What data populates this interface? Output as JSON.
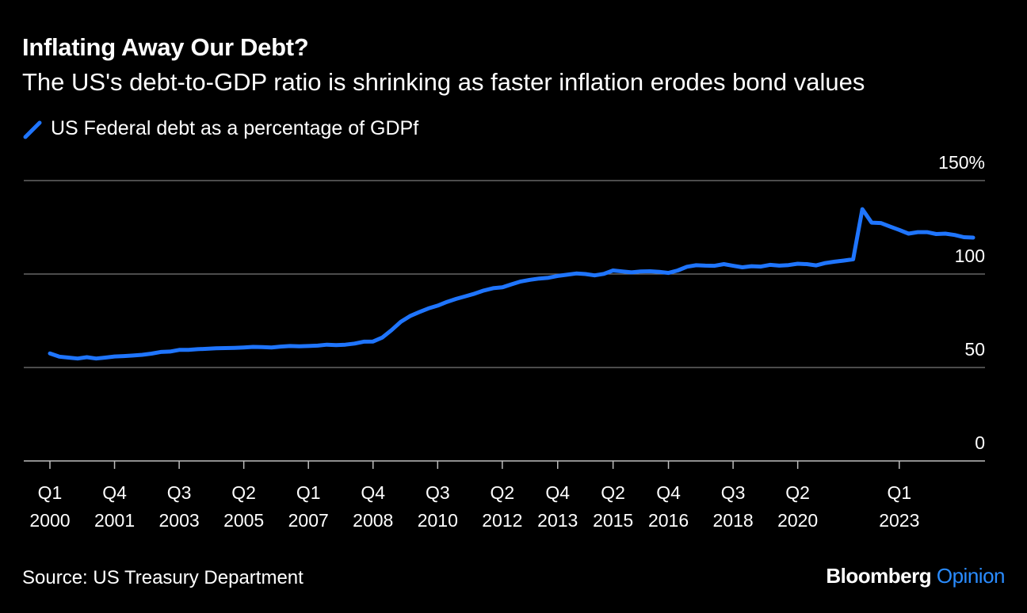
{
  "header": {
    "title": "Inflating Away Our Debt?",
    "subtitle": "The US's debt-to-GDP ratio is shrinking as faster inflation erodes bond values"
  },
  "footer": {
    "source": "Source: US Treasury Department",
    "brand_main": "Bloomberg",
    "brand_accent": "Opinion"
  },
  "colors": {
    "line": "#1f75ff",
    "grid": "#7a7a7a",
    "background": "#000000",
    "accent": "#2a8cff"
  },
  "chart_data": {
    "type": "line",
    "title": "Inflating Away Our Debt?",
    "subtitle": "The US's debt-to-GDP ratio is shrinking as faster inflation erodes bond values",
    "ylim": [
      0,
      150
    ],
    "yticks": [
      {
        "value": 150,
        "label": "150%"
      },
      {
        "value": 100,
        "label": "100"
      },
      {
        "value": 50,
        "label": "50"
      },
      {
        "value": 0,
        "label": "0"
      }
    ],
    "grid": true,
    "legend_position": "top-left",
    "xticks": [
      {
        "q": 0,
        "top": "Q1",
        "bottom": "2000"
      },
      {
        "q": 7,
        "top": "Q4",
        "bottom": "2001"
      },
      {
        "q": 14,
        "top": "Q3",
        "bottom": "2003"
      },
      {
        "q": 21,
        "top": "Q2",
        "bottom": "2005"
      },
      {
        "q": 28,
        "top": "Q1",
        "bottom": "2007"
      },
      {
        "q": 35,
        "top": "Q4",
        "bottom": "2008"
      },
      {
        "q": 42,
        "top": "Q3",
        "bottom": "2010"
      },
      {
        "q": 49,
        "top": "Q2",
        "bottom": "2012"
      },
      {
        "q": 55,
        "top": "Q4",
        "bottom": "2013"
      },
      {
        "q": 61,
        "top": "Q2",
        "bottom": "2015"
      },
      {
        "q": 67,
        "top": "Q4",
        "bottom": "2016"
      },
      {
        "q": 74,
        "top": "Q3",
        "bottom": "2018"
      },
      {
        "q": 81,
        "top": "Q2",
        "bottom": "2020"
      },
      {
        "q": 92,
        "top": "Q1",
        "bottom": "2023"
      }
    ],
    "series": [
      {
        "name": "US Federal debt as a percentage of GDPf",
        "start": "2000 Q1",
        "values": [
          57.5,
          55.8,
          55.3,
          54.8,
          55.5,
          54.8,
          55.3,
          55.9,
          56.1,
          56.4,
          56.8,
          57.4,
          58.3,
          58.5,
          59.4,
          59.4,
          59.8,
          60.0,
          60.3,
          60.4,
          60.5,
          60.7,
          61.0,
          60.9,
          60.7,
          61.2,
          61.5,
          61.3,
          61.5,
          61.7,
          62.2,
          62.0,
          62.2,
          62.8,
          63.8,
          63.9,
          66.0,
          70.0,
          74.4,
          77.5,
          79.6,
          81.6,
          83.1,
          85.1,
          86.7,
          88.1,
          89.5,
          91.2,
          92.4,
          92.9,
          94.5,
          96.0,
          96.9,
          97.6,
          98.0,
          99.0,
          99.6,
          100.3,
          100.0,
          99.3,
          100.1,
          101.9,
          101.4,
          100.9,
          101.4,
          101.5,
          101.2,
          100.6,
          101.9,
          103.9,
          104.7,
          104.5,
          104.4,
          105.3,
          104.4,
          103.6,
          104.2,
          104.0,
          104.9,
          104.5,
          104.8,
          105.5,
          105.3,
          104.6,
          105.9,
          106.6,
          107.2,
          107.9,
          134.7,
          127.5,
          127.3,
          125.4,
          123.6,
          121.6,
          122.4,
          122.4,
          121.4,
          121.6,
          120.9,
          119.7,
          119.5
        ]
      }
    ]
  }
}
